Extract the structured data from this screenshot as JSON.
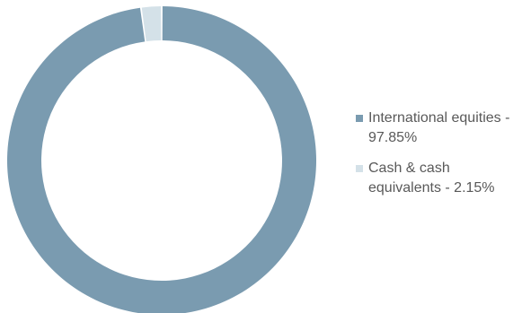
{
  "chart_data": {
    "type": "pie",
    "variant": "donut",
    "slices": [
      {
        "label": "International equities",
        "value": 97.85,
        "display": "International equities - 97.85%",
        "color": "#7a9bb0"
      },
      {
        "label": "Cash & cash equivalents",
        "value": 2.15,
        "display": "Cash & cash equivalents - 2.15%",
        "color": "#d4e1e8"
      }
    ],
    "legend_position": "right"
  }
}
